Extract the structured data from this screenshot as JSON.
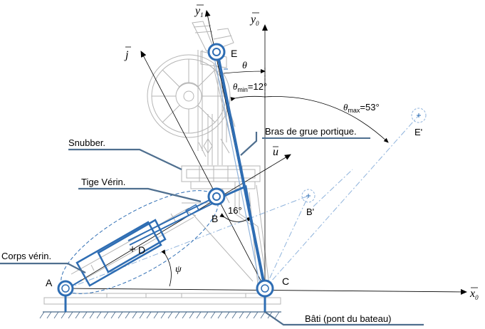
{
  "labels": {
    "y1": "y",
    "y1_sub": "1",
    "y0": "y",
    "y0_sub": "0",
    "x0": "x",
    "x0_sub": "0",
    "j": "j",
    "u": "u",
    "theta": "θ",
    "theta_min": "θ",
    "theta_min_sub": "min",
    "theta_min_val": "=12°",
    "theta_max": "θ",
    "theta_max_sub": "max",
    "theta_max_val": "=53°",
    "psi": "ψ",
    "angle_16": "16°",
    "point_E": "E",
    "point_E_prime": "E'",
    "point_B": "B",
    "point_B_prime": "B'",
    "point_A": "A",
    "point_C": "C",
    "point_D": "D",
    "callout_bras": "Bras de grue portique.",
    "callout_snubber": "Snubber.",
    "callout_tige": "Tige Vérin.",
    "callout_corps": "Corps vérin.",
    "callout_bati": "Bâti (pont du bateau)"
  },
  "colors": {
    "mechanism_blue": "#2e6db3",
    "light_blue": "#8fb3dc",
    "drawing_gray": "#b5b5b5",
    "callout_steel": "#4f6f8f",
    "text": "#000000"
  }
}
